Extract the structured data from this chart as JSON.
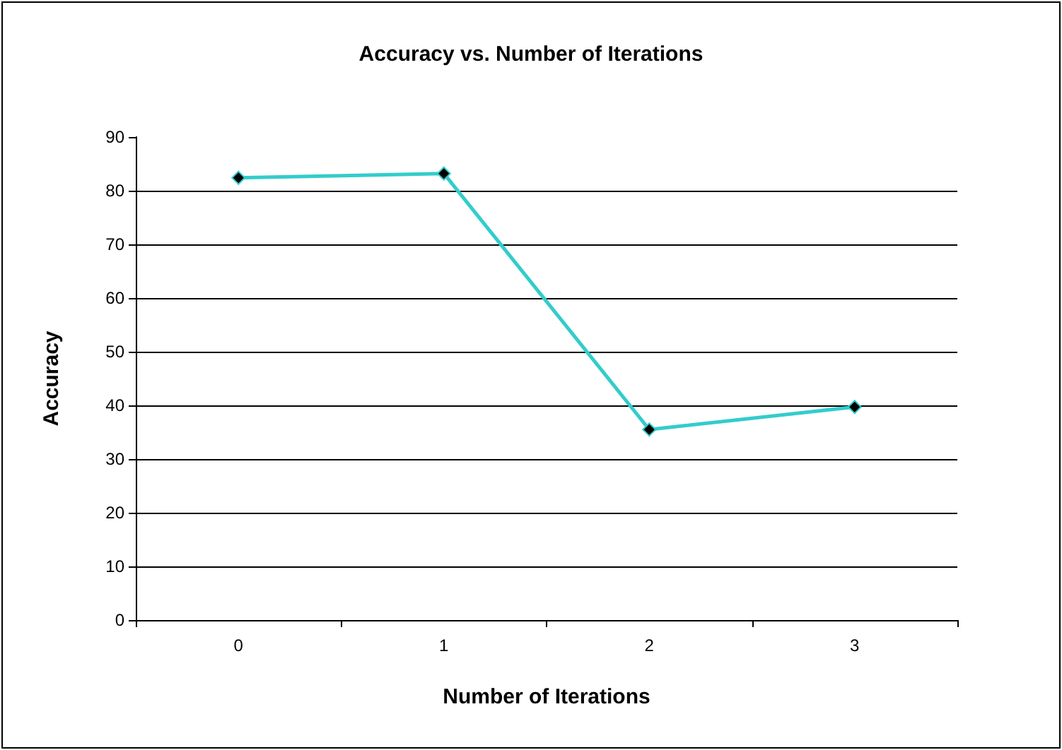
{
  "chart_data": {
    "type": "line",
    "title": "Accuracy vs. Number of Iterations",
    "xlabel": "Number of Iterations",
    "ylabel": "Accuracy",
    "categories": [
      "0",
      "1",
      "2",
      "3"
    ],
    "series": [
      {
        "color": "#33cccc",
        "values": [
          82.4,
          83.2,
          35.5,
          39.7
        ]
      }
    ],
    "ylim": [
      0,
      90
    ],
    "yticks": [
      0,
      10,
      20,
      30,
      40,
      50,
      60,
      70,
      80,
      90
    ],
    "grid": "y",
    "marker": "diamond",
    "line_style": "solid"
  }
}
